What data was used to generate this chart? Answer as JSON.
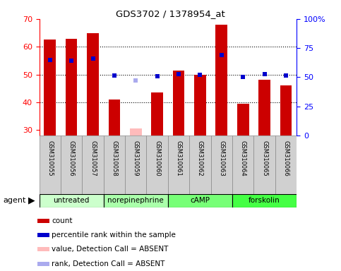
{
  "title": "GDS3702 / 1378954_at",
  "samples": [
    "GSM310055",
    "GSM310056",
    "GSM310057",
    "GSM310058",
    "GSM310059",
    "GSM310060",
    "GSM310061",
    "GSM310062",
    "GSM310063",
    "GSM310064",
    "GSM310065",
    "GSM310066"
  ],
  "bar_values": [
    62.5,
    62.8,
    65.0,
    41.0,
    null,
    43.5,
    51.5,
    50.0,
    68.0,
    39.5,
    48.0,
    46.0
  ],
  "bar_absent_values": [
    null,
    null,
    null,
    null,
    30.5,
    null,
    null,
    null,
    null,
    null,
    null,
    null
  ],
  "rank_right_values": [
    65.0,
    64.0,
    66.0,
    51.5,
    null,
    51.0,
    52.5,
    52.0,
    69.0,
    50.5,
    52.5,
    51.5
  ],
  "rank_right_absent": [
    null,
    null,
    null,
    null,
    47.5,
    null,
    null,
    null,
    null,
    null,
    null,
    null
  ],
  "ylim_left": [
    28,
    70
  ],
  "ylim_right": [
    0,
    100
  ],
  "yticks_left": [
    30,
    40,
    50,
    60,
    70
  ],
  "yticks_right": [
    0,
    25,
    50,
    75,
    100
  ],
  "ytick_labels_right": [
    "0",
    "25",
    "50",
    "75",
    "100%"
  ],
  "groups": [
    {
      "label": "untreated",
      "start": 0,
      "end": 2
    },
    {
      "label": "norepinephrine",
      "start": 3,
      "end": 5
    },
    {
      "label": "cAMP",
      "start": 6,
      "end": 8
    },
    {
      "label": "forskolin",
      "start": 9,
      "end": 11
    }
  ],
  "group_colors": [
    "#ccffcc",
    "#aaffaa",
    "#77ff77",
    "#44ff44"
  ],
  "bar_color": "#cc0000",
  "bar_absent_color": "#ffbbbb",
  "rank_color": "#0000cc",
  "rank_absent_color": "#aaaaee",
  "bar_width": 0.55,
  "legend_items": [
    {
      "color": "#cc0000",
      "label": "count"
    },
    {
      "color": "#0000cc",
      "label": "percentile rank within the sample"
    },
    {
      "color": "#ffbbbb",
      "label": "value, Detection Call = ABSENT"
    },
    {
      "color": "#aaaaee",
      "label": "rank, Detection Call = ABSENT"
    }
  ],
  "agent_label": "agent"
}
